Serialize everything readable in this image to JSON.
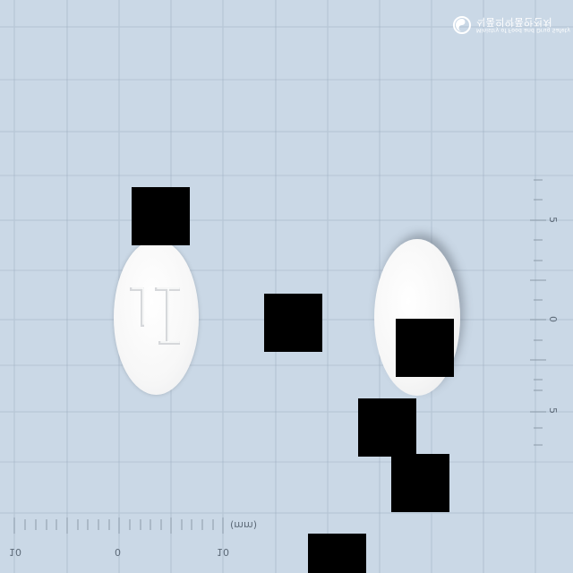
{
  "watermark": {
    "line1": "Ministry of Food and Drug Safety",
    "line2": "식품의약품안전처"
  },
  "scale": {
    "unit_label": "(mm)",
    "bottom_ticks": [
      "10",
      "0",
      "10"
    ],
    "right_ticks": [
      "5",
      "0",
      "5"
    ]
  },
  "pills": [
    {
      "side": "front",
      "imprint": "L1"
    },
    {
      "side": "back",
      "imprint": ""
    }
  ],
  "colors": {
    "background": "#cad8e6",
    "grid_line": "#b7c6d6",
    "pill": "#f7f7f7",
    "redaction": "#000000"
  }
}
